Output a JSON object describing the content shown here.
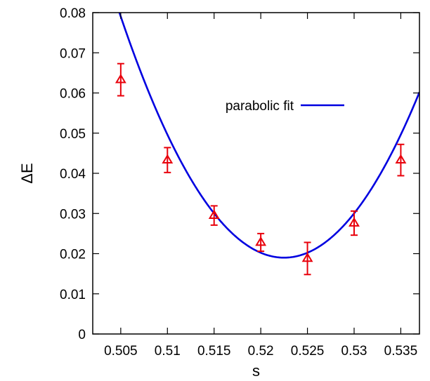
{
  "chart_data": {
    "type": "scatter",
    "xlabel": "s",
    "ylabel": "ΔE",
    "xlim": [
      0.502,
      0.537
    ],
    "ylim": [
      0,
      0.08
    ],
    "x_ticks": [
      0.505,
      0.51,
      0.515,
      0.52,
      0.525,
      0.53,
      0.535
    ],
    "x_tick_labels": [
      "0.505",
      "0.51",
      "0.515",
      "0.52",
      "0.525",
      "0.53",
      "0.535"
    ],
    "y_ticks": [
      0,
      0.01,
      0.02,
      0.03,
      0.04,
      0.05,
      0.06,
      0.07,
      0.08
    ],
    "y_tick_labels": [
      "0",
      "0.01",
      "0.02",
      "0.03",
      "0.04",
      "0.05",
      "0.06",
      "0.07",
      "0.08"
    ],
    "grid": false,
    "legend_position": "top-right",
    "series": [
      {
        "kind": "points_with_error_bars",
        "marker": "triangle",
        "color": "#e8000b",
        "x": [
          0.505,
          0.51,
          0.515,
          0.52,
          0.525,
          0.53,
          0.535
        ],
        "y": [
          0.0633,
          0.0433,
          0.0295,
          0.0228,
          0.0188,
          0.0276,
          0.0433
        ],
        "y_error": [
          0.004,
          0.0031,
          0.0024,
          0.0022,
          0.004,
          0.003,
          0.0039
        ]
      },
      {
        "name": "parabolic fit",
        "kind": "line",
        "color": "#0000e0",
        "fit_vertex_x": 0.5225,
        "fit_vertex_y": 0.019,
        "fit_curvature": 196
      }
    ]
  }
}
